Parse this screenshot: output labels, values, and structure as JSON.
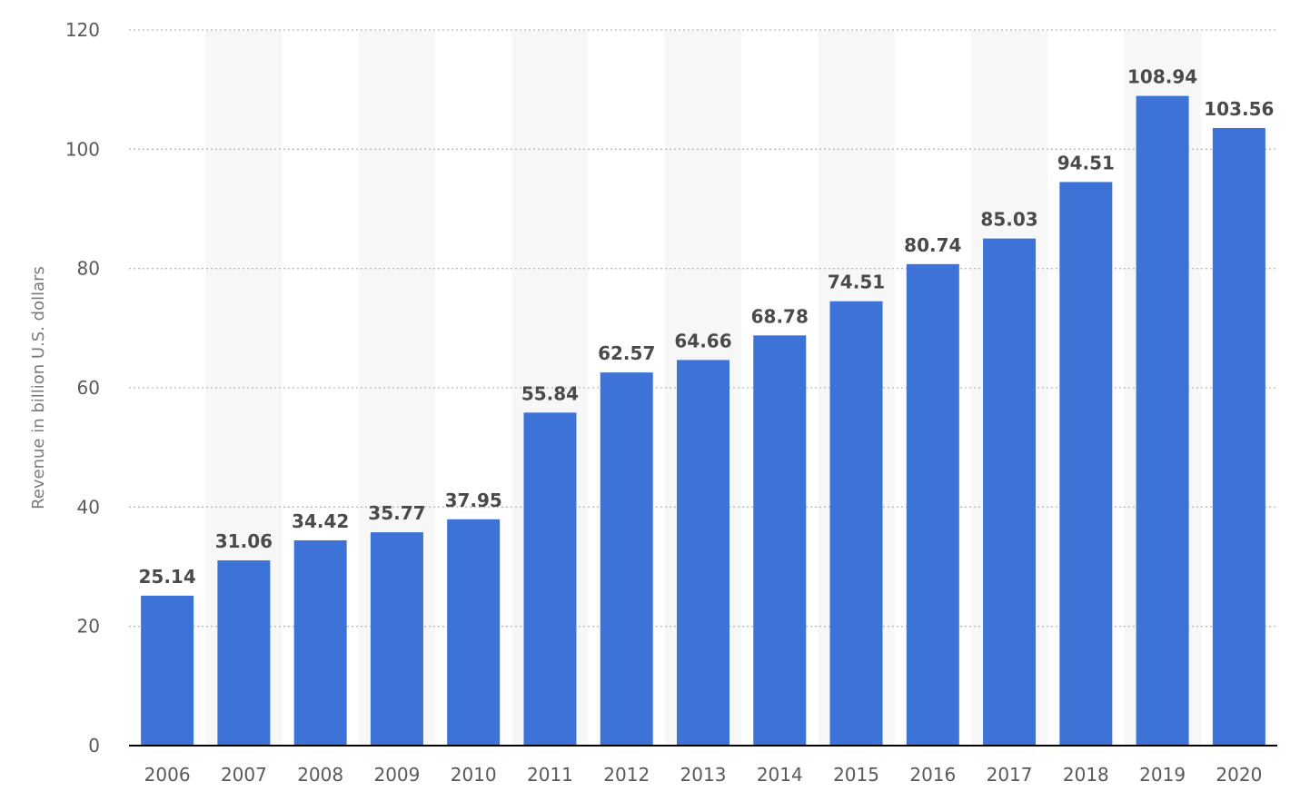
{
  "chart_data": {
    "type": "bar",
    "title": "",
    "xlabel": "",
    "ylabel": "Revenue in billion U.S. dollars",
    "ylim": [
      0,
      120
    ],
    "yticks": [
      0,
      20,
      40,
      60,
      80,
      100,
      120
    ],
    "categories": [
      "2006",
      "2007",
      "2008",
      "2009",
      "2010",
      "2011",
      "2012",
      "2013",
      "2014",
      "2015",
      "2016",
      "2017",
      "2018",
      "2019",
      "2020"
    ],
    "values": [
      25.14,
      31.06,
      34.42,
      35.77,
      37.95,
      55.84,
      62.57,
      64.66,
      68.78,
      74.51,
      80.74,
      85.03,
      94.51,
      108.94,
      103.56
    ],
    "value_labels": [
      "25.14",
      "31.06",
      "34.42",
      "35.77",
      "37.95",
      "55.84",
      "62.57",
      "64.66",
      "68.78",
      "74.51",
      "80.74",
      "85.03",
      "94.51",
      "108.94",
      "103.56"
    ],
    "grid": true,
    "legend": "none",
    "bar_color": "#3d72d7"
  }
}
